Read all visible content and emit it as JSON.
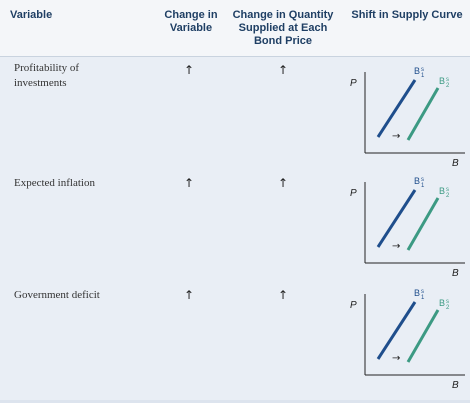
{
  "table": {
    "headers": {
      "variable": "Variable",
      "change_in_variable": "Change in\nVariable",
      "change_in_quantity": "Change in Quantity\nSupplied at Each\nBond Price",
      "shift": "Shift in Supply Curve"
    },
    "rows": [
      {
        "variable": "Profitability of\ninvestments",
        "change_in_variable": "↑",
        "change_in_quantity": "↑",
        "graph": {
          "y_axis": "P",
          "x_axis": "B",
          "curve1": "B",
          "curve1_sup": "s",
          "curve1_sub": "1",
          "curve2": "B",
          "curve2_sup": "s",
          "curve2_sub": "2",
          "shift_arrow": "→"
        }
      },
      {
        "variable": "Expected inflation",
        "change_in_variable": "↑",
        "change_in_quantity": "↑",
        "graph": {
          "y_axis": "P",
          "x_axis": "B",
          "curve1": "B",
          "curve1_sup": "s",
          "curve1_sub": "1",
          "curve2": "B",
          "curve2_sup": "s",
          "curve2_sub": "2",
          "shift_arrow": "→"
        }
      },
      {
        "variable": "Government deficit",
        "change_in_variable": "↑",
        "change_in_quantity": "↑",
        "graph": {
          "y_axis": "P",
          "x_axis": "B",
          "curve1": "B",
          "curve1_sup": "s",
          "curve1_sub": "1",
          "curve2": "B",
          "curve2_sup": "s",
          "curve2_sub": "2",
          "shift_arrow": "→"
        }
      }
    ]
  },
  "colors": {
    "curve1": "#1f4e8c",
    "curve2": "#3c9a83",
    "header_text": "#1f3f64"
  }
}
